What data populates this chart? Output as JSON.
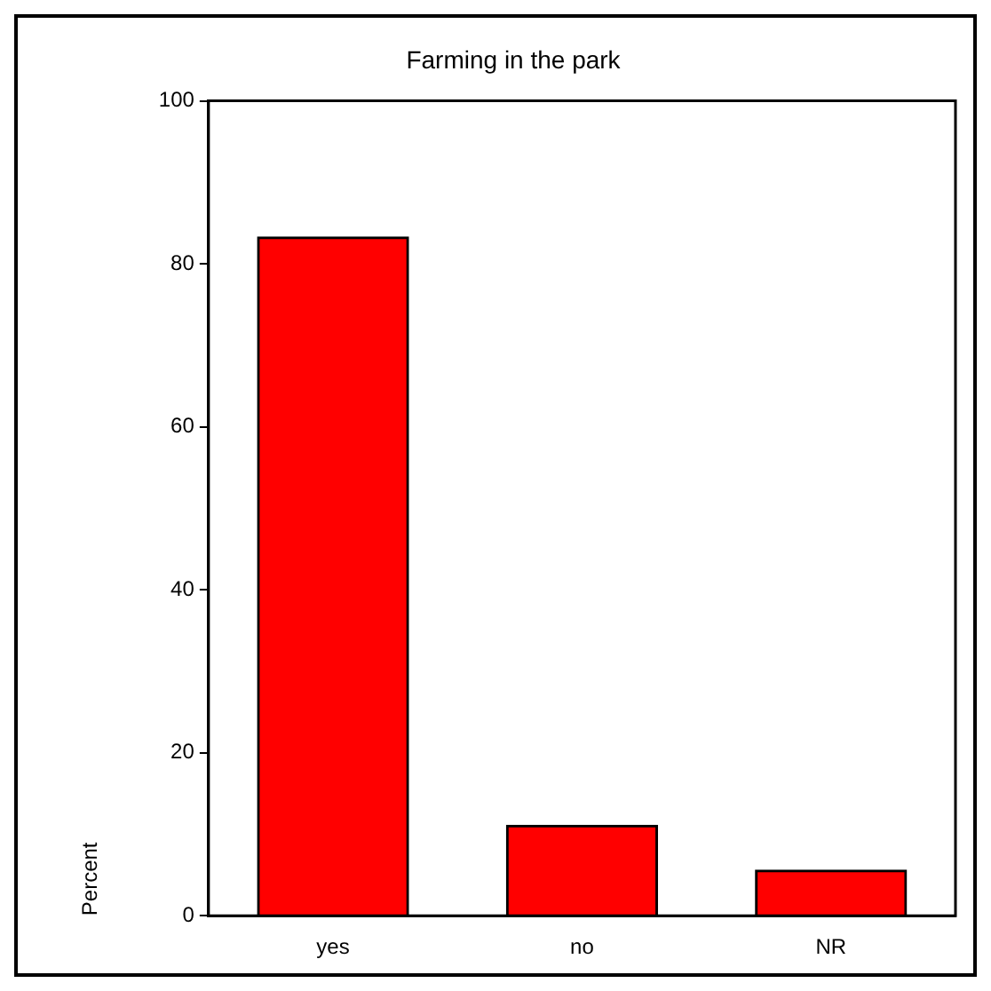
{
  "chart_data": {
    "type": "bar",
    "title": "Farming in the park",
    "ylabel": "Percent",
    "categories": [
      "yes",
      "no",
      "NR"
    ],
    "values": [
      83.3,
      11.1,
      5.6
    ],
    "color": "#ff0000",
    "ylim": [
      0,
      100
    ],
    "yticks": [
      0,
      20,
      40,
      60,
      80,
      100
    ],
    "grid": false,
    "legend": false
  }
}
